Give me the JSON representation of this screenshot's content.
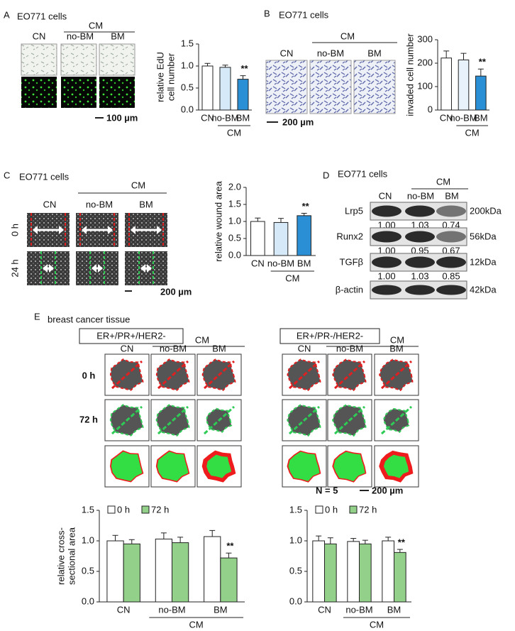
{
  "panels": {
    "A": {
      "letter": "A",
      "cells": "EO771 cells",
      "cm": "CM",
      "columns": [
        "CN",
        "no-BM",
        "BM"
      ],
      "scale": "100 µm"
    },
    "B": {
      "letter": "B",
      "cells": "EO771 cells",
      "cm": "CM",
      "columns": [
        "CN",
        "no-BM",
        "BM"
      ],
      "scale": "200 µm"
    },
    "C": {
      "letter": "C",
      "cells": "EO771 cells",
      "cm": "CM",
      "columns": [
        "CN",
        "no-BM",
        "BM"
      ],
      "rows": [
        "0 h",
        "24 h"
      ],
      "scale": "200 µm"
    },
    "D": {
      "letter": "D",
      "cells": "EO771 cells",
      "cm": "CM",
      "columns": [
        "CN",
        "no-BM",
        "BM"
      ],
      "blots": [
        {
          "label": "Lrp5",
          "size": "200kDa",
          "values": [
            "1.00",
            "1.03",
            "0.74"
          ]
        },
        {
          "label": "Runx2",
          "size": "56kDa",
          "values": [
            "1.00",
            "0.95",
            "0.67"
          ]
        },
        {
          "label": "TGFβ",
          "size": "12kDa",
          "values": [
            "1.00",
            "1.03",
            "0.85"
          ]
        },
        {
          "label": "β-actin",
          "size": "42kDa"
        }
      ]
    },
    "E": {
      "letter": "E",
      "title": "breast cancer tissue",
      "groups": [
        "ER+/PR+/HER2-",
        "ER+/PR-/HER2-"
      ],
      "cm": "CM",
      "columns": [
        "CN",
        "no-BM",
        "BM"
      ],
      "rows": [
        "0 h",
        "72 h"
      ],
      "n": "N = 5",
      "scale": "200 µm"
    }
  },
  "chart_data": [
    {
      "type": "bar",
      "y_label": [
        "relative EdU",
        "cell number"
      ],
      "categories": [
        "CN",
        "no-BM",
        "BM"
      ],
      "group_label": "CM",
      "values": [
        1.0,
        0.97,
        0.7
      ],
      "errors": [
        0.06,
        0.05,
        0.08
      ],
      "colors": [
        "#ffffff",
        "#d6e9f8",
        "#2a8fd4"
      ],
      "annotation": {
        "index": 2,
        "text": "**"
      },
      "ylim": [
        0,
        1.5
      ],
      "yticks": [
        {
          "value": 0,
          "label": "0.0"
        },
        {
          "value": 0.5,
          "label": "0.5"
        },
        {
          "value": 1,
          "label": "1.0"
        },
        {
          "value": 1.5,
          "label": "1.5"
        }
      ]
    },
    {
      "type": "bar",
      "y_label": [
        "invaded cell number"
      ],
      "categories": [
        "CN",
        "no-BM",
        "BM"
      ],
      "group_label": "CM",
      "values": [
        222,
        214,
        145
      ],
      "errors": [
        30,
        28,
        30
      ],
      "colors": [
        "#ffffff",
        "#e8f2fb",
        "#2a8fd4"
      ],
      "annotation": {
        "index": 2,
        "text": "**"
      },
      "ylim": [
        0,
        300
      ],
      "yticks": [
        0,
        100,
        200,
        300
      ]
    },
    {
      "type": "bar",
      "y_label": [
        "relative wound area"
      ],
      "categories": [
        "CN",
        "no-BM",
        "BM"
      ],
      "group_label": "CM",
      "values": [
        1.0,
        0.97,
        1.17
      ],
      "errors": [
        0.1,
        0.12,
        0.07
      ],
      "colors": [
        "#ffffff",
        "#d6e9f8",
        "#2a8fd4"
      ],
      "annotation": {
        "index": 2,
        "text": "**"
      },
      "ylim": [
        0,
        2
      ],
      "yticks": [
        {
          "value": 0,
          "label": "0.0"
        },
        {
          "value": 0.5,
          "label": "0.5"
        },
        {
          "value": 1,
          "label": "1.0"
        },
        {
          "value": 1.5,
          "label": "1.5"
        },
        {
          "value": 2,
          "label": "2.0"
        }
      ]
    },
    {
      "type": "bar",
      "y_label": [
        "relative cross-",
        "sectional area"
      ],
      "categories": [
        "CN",
        "no-BM",
        "BM"
      ],
      "group_label": "CM",
      "series": [
        {
          "name": "0 h",
          "color": "#ffffff",
          "values": [
            1.0,
            1.03,
            1.07
          ],
          "errors": [
            0.09,
            0.1,
            0.1
          ]
        },
        {
          "name": "72 h",
          "color": "#93d08a",
          "values": [
            0.95,
            0.97,
            0.72
          ],
          "errors": [
            0.07,
            0.09,
            0.08
          ]
        }
      ],
      "annotation": {
        "series": 1,
        "index": 2,
        "text": "**"
      },
      "ylim": [
        0,
        1.5
      ],
      "yticks": [
        {
          "value": 0,
          "label": "0.0"
        },
        {
          "value": 0.5,
          "label": "0.5"
        },
        {
          "value": 1,
          "label": "1.0"
        },
        {
          "value": 1.5,
          "label": "1.5"
        }
      ]
    },
    {
      "type": "bar",
      "categories": [
        "CN",
        "no-BM",
        "BM"
      ],
      "group_label": "CM",
      "series": [
        {
          "name": "0 h",
          "color": "#ffffff",
          "values": [
            1.0,
            0.99,
            1.0
          ],
          "errors": [
            0.08,
            0.05,
            0.06
          ]
        },
        {
          "name": "72 h",
          "color": "#93d08a",
          "values": [
            0.95,
            0.95,
            0.81
          ],
          "errors": [
            0.1,
            0.06,
            0.05
          ]
        }
      ],
      "annotation": {
        "series": 1,
        "index": 2,
        "text": "**"
      },
      "ylim": [
        0,
        1.5
      ],
      "yticks": [
        {
          "value": 0,
          "label": "0.0"
        },
        {
          "value": 0.5,
          "label": "0.5"
        },
        {
          "value": 1,
          "label": "1.0"
        },
        {
          "value": 1.5,
          "label": "1.5"
        }
      ]
    }
  ]
}
